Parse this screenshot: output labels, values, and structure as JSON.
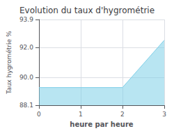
{
  "chart_data": {
    "type": "area",
    "title": "Evolution du taux d'hygrométrie",
    "x_label": "heure par heure",
    "y_label": "Taux hygrométrie %",
    "x": [
      0,
      2,
      3
    ],
    "values": [
      89.3,
      89.3,
      92.5
    ],
    "color": "#7ecfe8",
    "xlim": [
      0,
      3
    ],
    "xticks": [
      0,
      1,
      2,
      3
    ],
    "ylim": [
      88.1,
      93.9
    ],
    "yticks": [
      88.1,
      {
        "value": 90.0,
        "label": "90.0"
      },
      {
        "value": 92.0,
        "label": "92.0"
      },
      93.9
    ],
    "grid": true
  }
}
